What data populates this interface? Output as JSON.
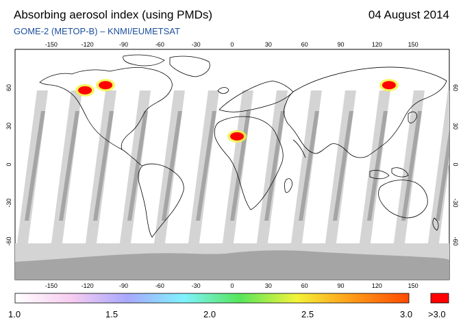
{
  "header": {
    "title": "Absorbing aerosol index (using PMDs)",
    "date": "04 August 2014",
    "subtitle": "GOME-2 (METOP-B)  –  KNMI/EUMETSAT"
  },
  "map": {
    "lon_ticks": [
      "-150",
      "-120",
      "-90",
      "-60",
      "-30",
      "0",
      "30",
      "60",
      "90",
      "120",
      "150"
    ],
    "lat_ticks": [
      "60",
      "30",
      "0",
      "-30",
      "-60"
    ],
    "lon_range": [
      -180,
      180
    ],
    "lat_range": [
      -90,
      90
    ],
    "colors": {
      "ocean": "#ffffff",
      "no_data": "#d4d4d4",
      "polar_shade": "#a5a5a5",
      "coast": "#000000"
    }
  },
  "colorbar": {
    "labels": [
      "1.0",
      "1.5",
      "2.0",
      "2.5",
      "3.0"
    ],
    "overflow_label": ">3.0",
    "range": [
      1.0,
      3.0
    ],
    "stops": [
      "#ffffff",
      "#f7ccf0",
      "#a8a8ff",
      "#7ff2ff",
      "#57e65a",
      "#f3f33a",
      "#ff9a19",
      "#ff4a00"
    ],
    "overflow_color": "#ff0000"
  },
  "aerosol_plumes": [
    {
      "region": "Sahara",
      "lon": 4,
      "lat": 22,
      "level": 3.0
    },
    {
      "region": "Canada west",
      "lon": -122,
      "lat": 58,
      "level": 3.0
    },
    {
      "region": "Canada central",
      "lon": -105,
      "lat": 62,
      "level": 3.0
    },
    {
      "region": "Siberia east",
      "lon": 130,
      "lat": 62,
      "level": 3.0
    }
  ]
}
